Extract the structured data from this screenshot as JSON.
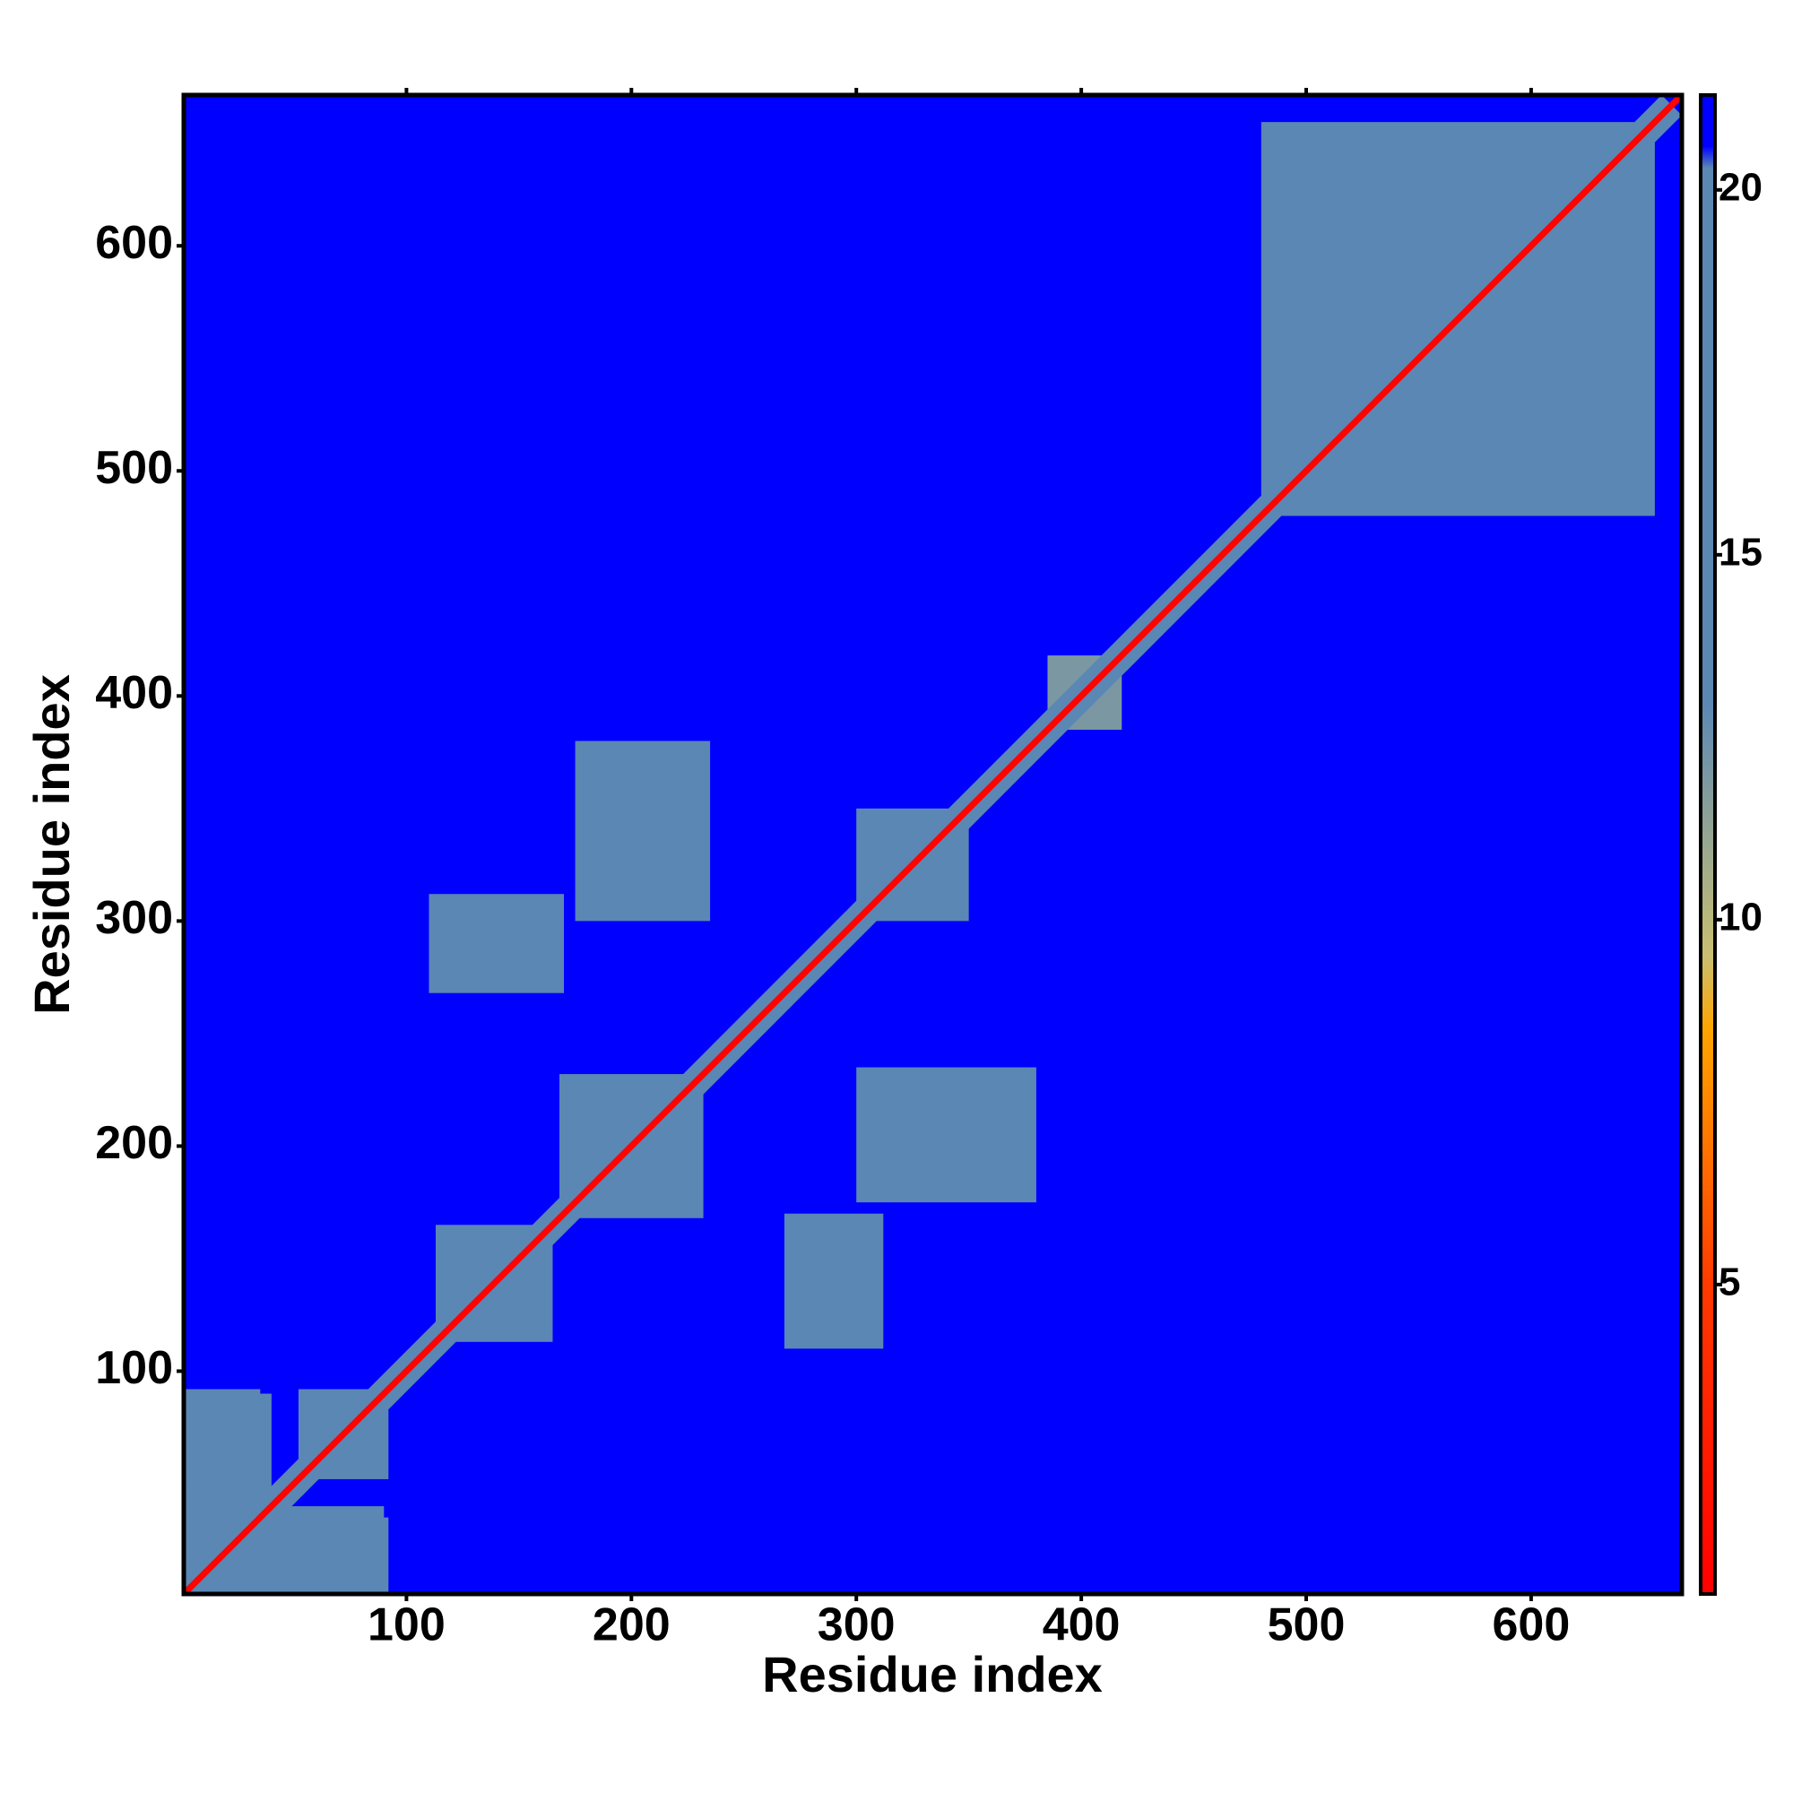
{
  "chart_data": {
    "type": "heatmap",
    "xlabel": "Residue index",
    "ylabel": "Residue index",
    "xlim": [
      1,
      667
    ],
    "ylim": [
      1,
      667
    ],
    "xticks": [
      100,
      200,
      300,
      400,
      500,
      600
    ],
    "yticks": [
      100,
      200,
      300,
      400,
      500,
      600
    ],
    "clim": [
      0.76,
      21.3
    ],
    "cticks": [
      5,
      10,
      15,
      20
    ],
    "colorscale": [
      [
        0.76,
        "#ff0000"
      ],
      [
        5,
        "#ff3a00"
      ],
      [
        8.5,
        "#ffa500"
      ],
      [
        9.5,
        "#c8bf70"
      ],
      [
        11,
        "#9aa890"
      ],
      [
        13,
        "#5b87b4"
      ],
      [
        20.3,
        "#5b87b4"
      ],
      [
        20.6,
        "#0000ff"
      ],
      [
        21.3,
        "#0000ff"
      ]
    ],
    "background": 21,
    "symmetric": true,
    "blocks": [
      {
        "x": [
          480,
          655
        ],
        "y": [
          480,
          655
        ],
        "value": 16
      },
      {
        "x": [
          1,
          40
        ],
        "y": [
          1,
          90
        ],
        "value": 15
      },
      {
        "x": [
          52,
          92
        ],
        "y": [
          52,
          92
        ],
        "value": 14
      },
      {
        "x": [
          50,
          92
        ],
        "y": [
          1,
          35
        ],
        "value": 15
      },
      {
        "x": [
          113,
          165
        ],
        "y": [
          113,
          165
        ],
        "value": 14
      },
      {
        "x": [
          168,
          232
        ],
        "y": [
          168,
          232
        ],
        "value": 14
      },
      {
        "x": [
          110,
          170
        ],
        "y": [
          268,
          312
        ],
        "value": 17
      },
      {
        "x": [
          175,
          235
        ],
        "y": [
          300,
          380
        ],
        "value": 17
      },
      {
        "x": [
          300,
          350
        ],
        "y": [
          300,
          350
        ],
        "value": 14
      },
      {
        "x": [
          385,
          418
        ],
        "y": [
          385,
          418
        ],
        "value": 12
      }
    ],
    "diagonal": [
      {
        "halfwidth": 9,
        "value": 13
      },
      {
        "halfwidth": 2,
        "value": 1
      }
    ]
  }
}
